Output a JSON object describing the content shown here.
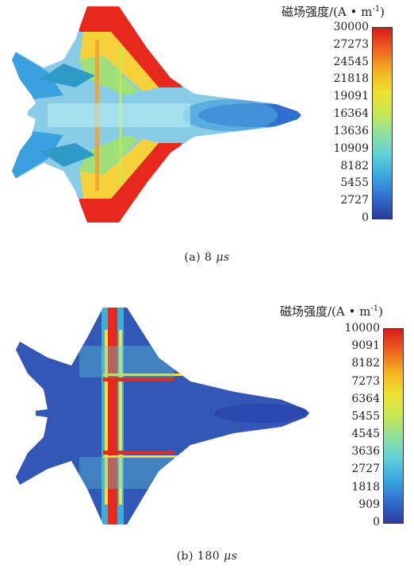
{
  "legend_title_main": "磁场强度/(A • m",
  "legend_title_sup": "-1",
  "legend_title_end": ")",
  "colormap": [
    "#2a3c9a",
    "#2f6fd0",
    "#3aa6e0",
    "#5fd0d8",
    "#8fe0a0",
    "#c8e850",
    "#f0e030",
    "#f5b020",
    "#f06020",
    "#d81a1a"
  ],
  "panel_a": {
    "ticks": [
      "30000",
      "27273",
      "24545",
      "21818",
      "19091",
      "16364",
      "13636",
      "10909",
      "8182",
      "5455",
      "2727",
      "0"
    ],
    "caption_label": "(a) 8 ",
    "caption_unit": "μs"
  },
  "panel_b": {
    "ticks": [
      "10000",
      "9091",
      "8182",
      "7273",
      "6364",
      "5455",
      "4545",
      "3636",
      "2727",
      "1818",
      "909",
      "0"
    ],
    "caption_label": "(b) 180 ",
    "caption_unit": "μs"
  }
}
